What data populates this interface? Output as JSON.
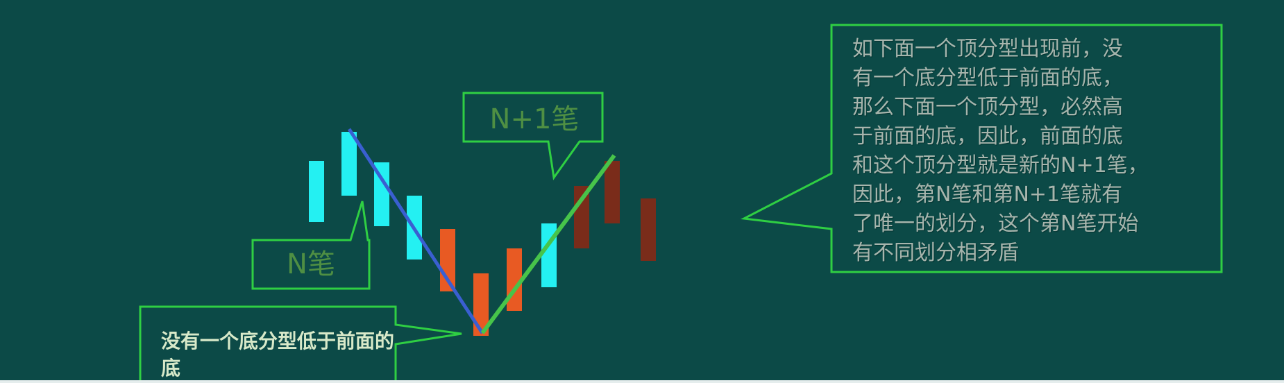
{
  "callouts": {
    "n_stroke": "N笔",
    "n_plus_1_stroke": "N+1笔",
    "left_note": "没有一个底分型低于前面的底",
    "right_note": "如下面一个顶分型出现前，没\n有一个底分型低于前面的底，\n那么下面一个顶分型，必然高\n于前面的底，因此，前面的底\n和这个顶分型就是新的N+1笔，\n因此，第N笔和第N+1笔就有\n了唯一的划分，这个第N笔开始\n有不同划分相矛盾"
  },
  "colors": {
    "background": "#0c4a47",
    "callout_border": "#2fcf43",
    "up_candle": "#24f0f2",
    "down_candle": "#e85a23",
    "dark_down_candle": "#7a2c1a",
    "stroke_n": "#3a5fd1",
    "stroke_n_plus_1": "#47c44a"
  }
}
